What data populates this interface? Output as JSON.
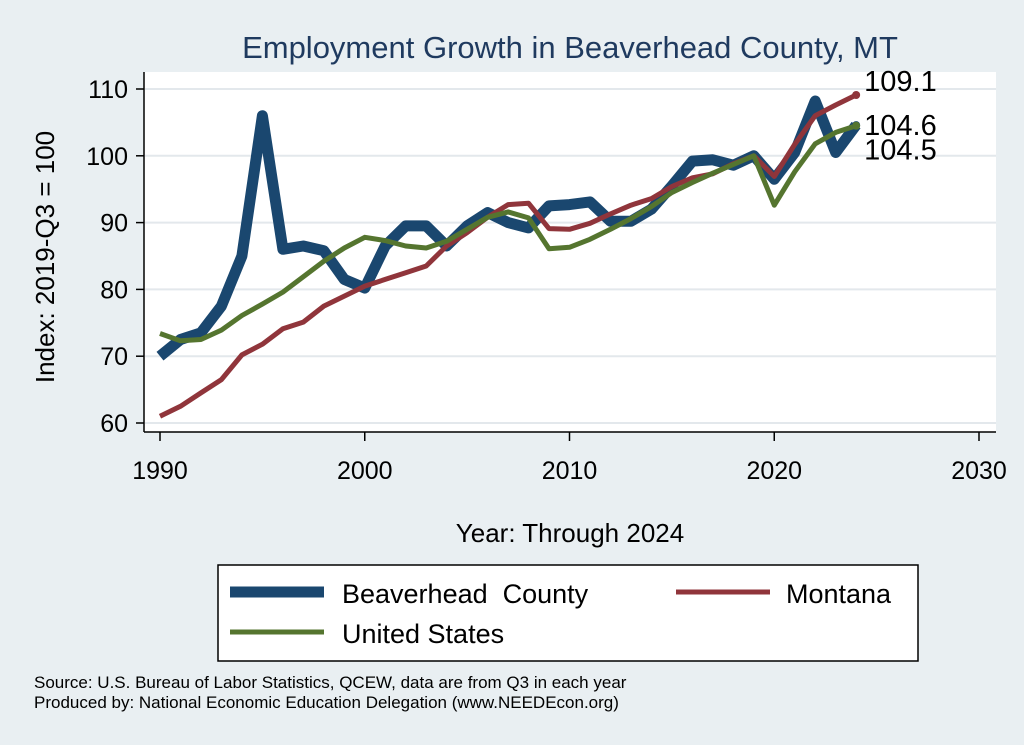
{
  "chart_data": {
    "type": "line",
    "title": "Employment Growth in Beaverhead County, MT",
    "xlabel": "Year: Through 2024",
    "ylabel": "Index: 2019-Q3 = 100",
    "xlim": [
      1990,
      2030
    ],
    "ylim": [
      60,
      110
    ],
    "xticks": [
      1990,
      2000,
      2010,
      2020,
      2030
    ],
    "yticks": [
      60,
      70,
      80,
      90,
      100,
      110
    ],
    "grid": "horizontal",
    "legend_position": "bottom",
    "x": [
      1990,
      1991,
      1992,
      1993,
      1994,
      1995,
      1996,
      1997,
      1998,
      1999,
      2000,
      2001,
      2002,
      2003,
      2004,
      2005,
      2006,
      2007,
      2008,
      2009,
      2010,
      2011,
      2012,
      2013,
      2014,
      2015,
      2016,
      2017,
      2018,
      2019,
      2020,
      2021,
      2022,
      2023,
      2024
    ],
    "series": [
      {
        "name": "Beaverhead  County",
        "color": "#1a476f",
        "end_label": "104.6",
        "values": [
          70.0,
          72.5,
          73.5,
          77.5,
          85.0,
          106.0,
          86.0,
          86.5,
          85.8,
          81.5,
          80.2,
          86.5,
          89.5,
          89.5,
          86.5,
          89.5,
          91.5,
          90.0,
          89.2,
          92.5,
          92.7,
          93.1,
          90.2,
          90.2,
          92.0,
          95.5,
          99.2,
          99.4,
          98.6,
          100.0,
          96.5,
          100.5,
          108.2,
          100.5,
          104.6
        ]
      },
      {
        "name": "Montana",
        "color": "#90353b",
        "end_label": "109.1",
        "values": [
          61.0,
          62.5,
          64.5,
          66.5,
          70.2,
          71.8,
          74.1,
          75.1,
          77.5,
          79.0,
          80.5,
          81.5,
          82.5,
          83.5,
          86.5,
          88.5,
          90.8,
          92.7,
          92.9,
          89.1,
          89.0,
          89.9,
          91.3,
          92.6,
          93.6,
          95.4,
          96.7,
          97.3,
          98.8,
          100.0,
          96.9,
          101.7,
          106.0,
          107.6,
          109.1
        ]
      },
      {
        "name": "United States",
        "color": "#55752f",
        "end_label": "104.5",
        "values": [
          73.4,
          72.3,
          72.5,
          73.9,
          76.1,
          77.8,
          79.6,
          81.9,
          84.2,
          86.2,
          87.8,
          87.3,
          86.5,
          86.2,
          87.2,
          89.0,
          90.8,
          91.6,
          90.7,
          86.1,
          86.3,
          87.5,
          89.0,
          90.6,
          92.4,
          94.5,
          96.0,
          97.4,
          98.7,
          100.0,
          92.6,
          97.6,
          101.8,
          103.5,
          104.5
        ]
      }
    ]
  },
  "source_note": "Source: U.S. Bureau of Labor Statistics, QCEW, data are from Q3 in each year",
  "producer_note": "Produced by: National Economic Education Delegation (www.NEEDEcon.org)"
}
